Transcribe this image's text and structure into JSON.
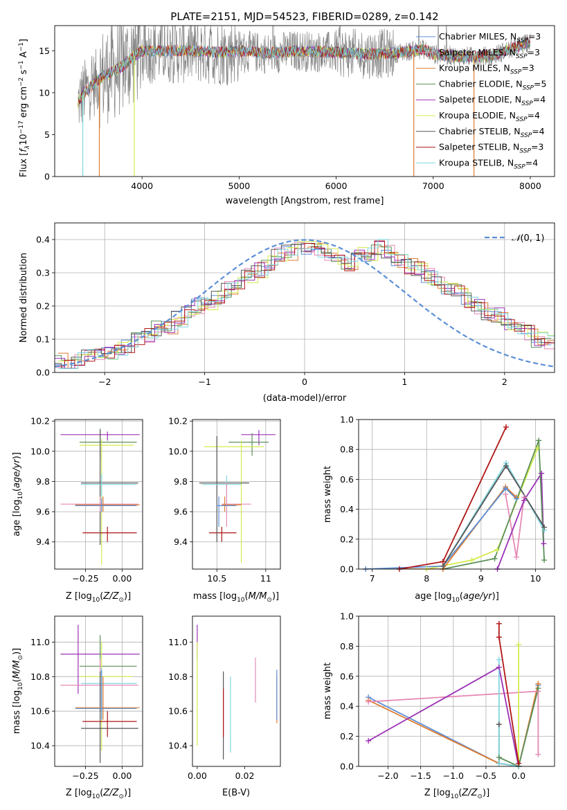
{
  "figure": {
    "title": "PLATE=2151, MJD=54523, FIBERID=0289, z=0.142",
    "colors": {
      "chabrier_miles": "#5b8fd6",
      "salpeter_miles": "#e589b5",
      "kroupa_miles": "#e07b30",
      "chabrier_elodie": "#5a8f5a",
      "salpeter_elodie": "#9b30b5",
      "kroupa_elodie": "#d4ec4c",
      "chabrier_stelib": "#555555",
      "salpeter_stelib": "#b01515",
      "kroupa_stelib": "#80d6e0",
      "data": "#808080",
      "normal": "#5b8fd6"
    }
  },
  "chart_data": [
    {
      "id": "spectrum",
      "type": "line",
      "xlabel": "wavelength [Angstrom, rest frame]",
      "ylabel": "Flux [f_λ 10^-17 erg cm^-2 s^-1 A^-1]",
      "xlim": [
        3100,
        8250
      ],
      "ylim": [
        0,
        18
      ],
      "xticks": [
        4000,
        5000,
        6000,
        7000,
        8000
      ],
      "yticks": [
        0,
        5,
        10,
        15
      ],
      "continuum": {
        "x": [
          3340,
          3400,
          3500,
          3600,
          3700,
          3800,
          3900,
          4000,
          4200,
          4500,
          4800,
          5000,
          5300,
          5600,
          6000,
          6300,
          6600,
          6900,
          7000,
          7300,
          7600,
          7800,
          8000
        ],
        "y": [
          8.8,
          10.0,
          11.0,
          12.0,
          12.5,
          13.2,
          14.2,
          15.0,
          15.0,
          15.0,
          14.8,
          15.0,
          14.7,
          15.0,
          14.8,
          14.6,
          14.7,
          15.2,
          14.6,
          14.3,
          14.4,
          15.2,
          16.0
        ]
      },
      "legend": [
        {
          "label": "Chabrier MILES, N",
          "sub": "SSP",
          "value": "=3",
          "color_key": "chabrier_miles"
        },
        {
          "label": "Salpeter MILES, N",
          "sub": "SSP",
          "value": "=3",
          "color_key": "salpeter_miles"
        },
        {
          "label": "Kroupa MILES, N",
          "sub": "SSP",
          "value": "=3",
          "color_key": "kroupa_miles"
        },
        {
          "label": "Chabrier ELODIE, N",
          "sub": "SSP",
          "value": "=5",
          "color_key": "chabrier_elodie"
        },
        {
          "label": "Salpeter ELODIE, N",
          "sub": "SSP",
          "value": "=4",
          "color_key": "salpeter_elodie"
        },
        {
          "label": "Kroupa ELODIE, N",
          "sub": "SSP",
          "value": "=4",
          "color_key": "kroupa_elodie"
        },
        {
          "label": "Chabrier STELIB, N",
          "sub": "SSP",
          "value": "=4",
          "color_key": "chabrier_stelib"
        },
        {
          "label": "Salpeter STELIB, N",
          "sub": "SSP",
          "value": "=3",
          "color_key": "salpeter_stelib"
        },
        {
          "label": "Kroupa STELIB, N",
          "sub": "SSP",
          "value": "=4",
          "color_key": "kroupa_stelib"
        }
      ],
      "legend_placement": "right"
    },
    {
      "id": "residuals",
      "type": "histogram",
      "xlabel": "(data-model)/error",
      "ylabel": "Normed distribution",
      "xlim": [
        -2.5,
        2.5
      ],
      "ylim": [
        0,
        0.45
      ],
      "xticks": [
        -2,
        -1,
        0,
        1,
        2
      ],
      "yticks": [
        0.0,
        0.1,
        0.2,
        0.3,
        0.4
      ],
      "grid": true,
      "bin_width": 0.1,
      "base_values": [
        0.035,
        0.03,
        0.04,
        0.05,
        0.06,
        0.06,
        0.07,
        0.08,
        0.1,
        0.11,
        0.13,
        0.14,
        0.16,
        0.18,
        0.2,
        0.21,
        0.23,
        0.25,
        0.27,
        0.29,
        0.31,
        0.33,
        0.35,
        0.36,
        0.37,
        0.38,
        0.37,
        0.36,
        0.34,
        0.33,
        0.36,
        0.35,
        0.38,
        0.36,
        0.34,
        0.32,
        0.31,
        0.29,
        0.27,
        0.25,
        0.24,
        0.22,
        0.2,
        0.18,
        0.17,
        0.15,
        0.13,
        0.12,
        0.1,
        0.09
      ],
      "normal_label": "N(0,1)",
      "legend_placement": "top-right"
    },
    {
      "id": "age-vs-z",
      "type": "errorbar",
      "xlabel": "Z [log10(Z/Z⊙)]",
      "ylabel": "age [log10(age/yr)]",
      "xlim": [
        -0.46,
        0.14
      ],
      "ylim": [
        9.22,
        10.21
      ],
      "xticks": [
        -0.25,
        0.0
      ],
      "xticklabels": [
        "−0.25",
        "0.00"
      ],
      "yticks": [
        9.4,
        9.6,
        9.8,
        10.0,
        10.2
      ],
      "grid": true,
      "points": [
        {
          "c": "salpeter_elodie",
          "x": -0.1,
          "xl": -0.42,
          "xh": 0.12,
          "y": 10.11,
          "yl": 10.07,
          "yh": 10.13
        },
        {
          "c": "chabrier_elodie",
          "x": -0.15,
          "xl": -0.29,
          "xh": 0.1,
          "y": 10.06,
          "yl": 9.95,
          "yh": 10.15
        },
        {
          "c": "kroupa_elodie",
          "x": -0.14,
          "xl": -0.29,
          "xh": 0.08,
          "y": 10.04,
          "yl": 9.25,
          "yh": 10.08
        },
        {
          "c": "salpeter_stelib",
          "x": -0.1,
          "xl": -0.27,
          "xh": 0.1,
          "y": 9.46,
          "yl": 9.4,
          "yh": 9.5
        },
        {
          "c": "chabrier_stelib",
          "x": -0.15,
          "xl": -0.28,
          "xh": 0.11,
          "y": 9.79,
          "yl": 9.38,
          "yh": 10.14
        },
        {
          "c": "kroupa_stelib",
          "x": -0.14,
          "xl": -0.28,
          "xh": 0.1,
          "y": 9.78,
          "yl": 9.7,
          "yh": 9.85
        },
        {
          "c": "salpeter_miles",
          "x": -0.15,
          "xl": -0.42,
          "xh": 0.11,
          "y": 9.65,
          "yl": 9.6,
          "yh": 9.7
        },
        {
          "c": "kroupa_miles",
          "x": -0.13,
          "xl": -0.32,
          "xh": 0.12,
          "y": 9.645,
          "yl": 9.6,
          "yh": 9.7
        },
        {
          "c": "chabrier_miles",
          "x": -0.14,
          "xl": -0.32,
          "xh": 0.1,
          "y": 9.64,
          "yl": 9.6,
          "yh": 9.69
        }
      ]
    },
    {
      "id": "age-vs-mass",
      "type": "errorbar",
      "xlabel": "mass [log10(M/M⊙)]",
      "ylabel": "",
      "xlim": [
        10.25,
        11.15
      ],
      "ylim": [
        9.22,
        10.21
      ],
      "xticks": [
        10.5,
        11.0
      ],
      "yticks": [
        9.4,
        9.6,
        9.8,
        10.0,
        10.2
      ],
      "grid": true,
      "points": [
        {
          "c": "salpeter_elodie",
          "x": 10.93,
          "xl": 10.75,
          "xh": 11.1,
          "y": 10.11,
          "yl": 10.04,
          "yh": 10.14
        },
        {
          "c": "chabrier_elodie",
          "x": 10.86,
          "xl": 10.62,
          "xh": 11.03,
          "y": 10.06,
          "yl": 9.97,
          "yh": 10.12
        },
        {
          "c": "kroupa_elodie",
          "x": 10.75,
          "xl": 10.37,
          "xh": 10.98,
          "y": 10.03,
          "yl": 9.26,
          "yh": 10.07
        },
        {
          "c": "salpeter_stelib",
          "x": 10.55,
          "xl": 10.42,
          "xh": 10.7,
          "y": 9.46,
          "yl": 9.4,
          "yh": 9.5
        },
        {
          "c": "chabrier_stelib",
          "x": 10.5,
          "xl": 10.32,
          "xh": 10.83,
          "y": 9.79,
          "yl": 9.4,
          "yh": 10.1
        },
        {
          "c": "kroupa_stelib",
          "x": 10.6,
          "xl": 10.35,
          "xh": 10.75,
          "y": 9.78,
          "yl": 9.64,
          "yh": 9.84
        },
        {
          "c": "salpeter_miles",
          "x": 10.6,
          "xl": 10.55,
          "xh": 10.85,
          "y": 9.65,
          "yl": 9.5,
          "yh": 9.79
        },
        {
          "c": "kroupa_miles",
          "x": 10.58,
          "xl": 10.55,
          "xh": 10.75,
          "y": 9.645,
          "yl": 9.6,
          "yh": 9.7
        },
        {
          "c": "chabrier_miles",
          "x": 10.52,
          "xl": 10.5,
          "xh": 10.7,
          "y": 9.64,
          "yl": 9.5,
          "yh": 9.7
        }
      ]
    },
    {
      "id": "weight-vs-age",
      "type": "line",
      "xlabel": "age [log10(age/yr)]",
      "ylabel": "mass weight",
      "xlim": [
        6.75,
        10.35
      ],
      "ylim": [
        0,
        1.0
      ],
      "xticks": [
        7,
        8,
        9,
        10
      ],
      "yticks": [
        0.0,
        0.2,
        0.4,
        0.6,
        0.8,
        1.0
      ],
      "grid": true,
      "series": [
        {
          "c": "salpeter_miles",
          "x": [
            9.45,
            9.65,
            9.79
          ],
          "y": [
            0.5,
            0.08,
            0.48
          ]
        },
        {
          "c": "kroupa_elodie",
          "x": [
            8.0,
            8.83,
            9.3,
            10.04
          ],
          "y": [
            0.0,
            0.06,
            0.13,
            0.81
          ]
        },
        {
          "c": "salpeter_elodie",
          "x": [
            9.3,
            9.79,
            10.11,
            10.15
          ],
          "y": [
            0.0,
            0.46,
            0.64,
            0.17
          ]
        },
        {
          "c": "chabrier_elodie",
          "x": [
            8.3,
            9.25,
            10.06,
            10.16
          ],
          "y": [
            0.0,
            0.07,
            0.86,
            0.06
          ]
        },
        {
          "c": "kroupa_miles",
          "x": [
            6.88,
            8.3,
            9.45,
            9.65
          ],
          "y": [
            0.0,
            0.0,
            0.55,
            0.48
          ]
        },
        {
          "c": "chabrier_miles",
          "x": [
            6.88,
            8.3,
            9.45,
            9.65
          ],
          "y": [
            0.0,
            0.02,
            0.54,
            0.47
          ]
        },
        {
          "c": "kroupa_stelib",
          "x": [
            8.3,
            9.46,
            10.16
          ],
          "y": [
            0.02,
            0.71,
            0.26
          ]
        },
        {
          "c": "chabrier_stelib",
          "x": [
            8.3,
            9.46,
            10.16
          ],
          "y": [
            0.02,
            0.69,
            0.28
          ]
        },
        {
          "c": "salpeter_stelib",
          "x": [
            7.5,
            8.3,
            9.46
          ],
          "y": [
            0.0,
            0.05,
            0.95
          ]
        }
      ]
    },
    {
      "id": "mass-vs-z",
      "type": "errorbar",
      "xlabel": "Z [log10(Z/Z⊙)]",
      "ylabel": "mass [log10(M/M⊙)]",
      "xlim": [
        -0.46,
        0.14
      ],
      "ylim": [
        10.28,
        11.15
      ],
      "xticks": [
        -0.25,
        0.0
      ],
      "xticklabels": [
        "−0.25",
        "0.00"
      ],
      "yticks": [
        10.4,
        10.6,
        10.8,
        11.0
      ],
      "grid": true,
      "points": [
        {
          "c": "salpeter_elodie",
          "x": -0.3,
          "xl": -0.42,
          "xh": 0.12,
          "y": 10.93,
          "yl": 10.7,
          "yh": 11.1
        },
        {
          "c": "chabrier_elodie",
          "x": -0.15,
          "xl": -0.29,
          "xh": 0.1,
          "y": 10.86,
          "yl": 10.6,
          "yh": 11.04
        },
        {
          "c": "kroupa_elodie",
          "x": -0.14,
          "xl": -0.29,
          "xh": 0.07,
          "y": 10.8,
          "yl": 10.37,
          "yh": 11.0
        },
        {
          "c": "salpeter_miles",
          "x": -0.15,
          "xl": -0.42,
          "xh": 0.11,
          "y": 10.75,
          "yl": 10.62,
          "yh": 10.9
        },
        {
          "c": "kroupa_stelib",
          "x": -0.14,
          "xl": -0.28,
          "xh": 0.1,
          "y": 10.76,
          "yl": 10.6,
          "yh": 10.85
        },
        {
          "c": "chabrier_stelib",
          "x": -0.15,
          "xl": -0.28,
          "xh": 0.11,
          "y": 10.5,
          "yl": 10.3,
          "yh": 10.83
        },
        {
          "c": "salpeter_stelib",
          "x": -0.1,
          "xl": -0.27,
          "xh": 0.1,
          "y": 10.54,
          "yl": 10.45,
          "yh": 10.6
        },
        {
          "c": "kroupa_miles",
          "x": -0.13,
          "xl": -0.32,
          "xh": 0.12,
          "y": 10.62,
          "yl": 10.55,
          "yh": 10.8
        },
        {
          "c": "chabrier_miles",
          "x": -0.14,
          "xl": -0.32,
          "xh": 0.1,
          "y": 10.615,
          "yl": 10.55,
          "yh": 10.84
        }
      ]
    },
    {
      "id": "mass-vs-ebv",
      "type": "errorbar",
      "xlabel": "E(B-V)",
      "ylabel": "",
      "xlim": [
        -0.002,
        0.035
      ],
      "ylim": [
        10.28,
        11.15
      ],
      "xticks": [
        0.0,
        0.02
      ],
      "xticklabels": [
        "0.00",
        "0.02"
      ],
      "yticks": [
        10.4,
        10.6,
        10.8,
        11.0
      ],
      "grid": false,
      "points": [
        {
          "c": "salpeter_elodie",
          "x": 0.0,
          "y": 11.0,
          "yl": 10.9,
          "yh": 11.1
        },
        {
          "c": "kroupa_elodie",
          "x": 0.0,
          "y": 10.7,
          "yl": 10.4,
          "yh": 11.0
        },
        {
          "c": "chabrier_stelib",
          "x": 0.011,
          "y": 10.55,
          "yl": 10.32,
          "yh": 10.83
        },
        {
          "c": "salpeter_stelib",
          "x": 0.011,
          "y": 10.6,
          "yl": 10.45,
          "yh": 10.73
        },
        {
          "c": "kroupa_stelib",
          "x": 0.014,
          "y": 10.55,
          "yl": 10.36,
          "yh": 10.8
        },
        {
          "c": "salpeter_miles",
          "x": 0.0245,
          "y": 10.78,
          "yl": 10.65,
          "yh": 10.91
        },
        {
          "c": "kroupa_miles",
          "x": 0.0335,
          "y": 10.67,
          "yl": 10.53,
          "yh": 10.8
        },
        {
          "c": "chabrier_miles",
          "x": 0.0335,
          "y": 10.7,
          "yl": 10.55,
          "yh": 10.84
        }
      ]
    },
    {
      "id": "weight-vs-z",
      "type": "line",
      "xlabel": "Z [log10(Z/Z⊙)]",
      "ylabel": "mass weight",
      "xlim": [
        -2.45,
        0.55
      ],
      "ylim": [
        0,
        1.0
      ],
      "xticks": [
        -2.0,
        -1.5,
        -1.0,
        -0.5,
        0.0
      ],
      "xticklabels": [
        "−2.0",
        "−1.5",
        "−1.0",
        "−0.5",
        "0.0"
      ],
      "yticks": [
        0.0,
        0.2,
        0.4,
        0.6,
        0.8,
        1.0
      ],
      "grid": true,
      "series": [
        {
          "c": "chabrier_miles",
          "x": [
            -2.3,
            -0.3,
            0.0,
            0.3
          ],
          "y": [
            0.46,
            0.02,
            0.0,
            0.54
          ]
        },
        {
          "c": "kroupa_miles",
          "x": [
            -2.3,
            -0.3,
            0.0,
            0.3
          ],
          "y": [
            0.44,
            0.02,
            0.0,
            0.55
          ]
        },
        {
          "c": "salpeter_miles",
          "x": [
            -2.3,
            0.3,
            0.3
          ],
          "y": [
            0.43,
            0.5,
            0.08
          ]
        },
        {
          "c": "salpeter_elodie",
          "x": [
            -2.3,
            -0.3,
            0.0
          ],
          "y": [
            0.17,
            0.66,
            0.0
          ]
        },
        {
          "c": "kroupa_elodie",
          "x": [
            0.0,
            0.0
          ],
          "y": [
            0.0,
            0.81
          ]
        },
        {
          "c": "chabrier_elodie",
          "x": [
            -0.3,
            0.0,
            0.3
          ],
          "y": [
            0.06,
            0.0,
            0.52
          ]
        },
        {
          "c": "chabrier_stelib",
          "x": [
            -0.3,
            -0.3,
            0.0
          ],
          "y": [
            0.28,
            0.02,
            0.0
          ]
        },
        {
          "c": "kroupa_stelib",
          "x": [
            -0.3,
            -0.3,
            0.0
          ],
          "y": [
            0.71,
            0.02,
            0.0
          ]
        },
        {
          "c": "salpeter_stelib",
          "x": [
            -0.3,
            -0.3,
            0.0
          ],
          "y": [
            0.95,
            0.86,
            0.02
          ]
        }
      ]
    }
  ]
}
